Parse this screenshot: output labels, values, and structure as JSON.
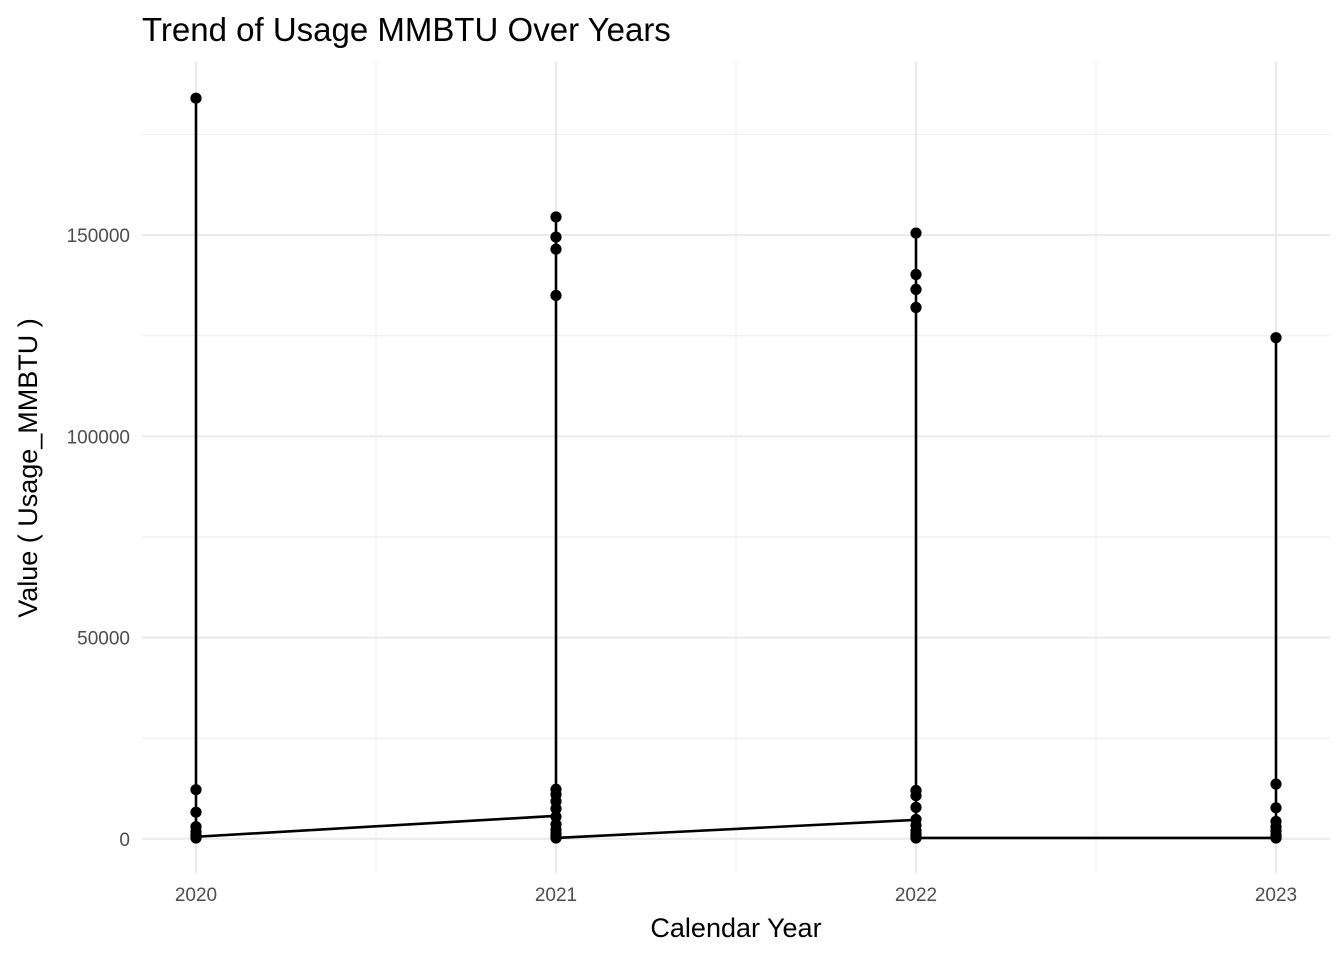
{
  "chart_data": {
    "type": "line",
    "title": "Trend of Usage MMBTU Over Years",
    "xlabel": "Calendar Year",
    "ylabel": "Value ( Usage_MMBTU )",
    "x_ticks": [
      "2020",
      "2021",
      "2022",
      "2023"
    ],
    "y_ticks": [
      "0",
      "50000",
      "100000",
      "150000"
    ],
    "ylim": [
      -8500,
      193000
    ],
    "xlim": [
      2019.85,
      2023.15
    ],
    "grid": true,
    "legend": "none",
    "colors": {
      "series": "#000000",
      "grid": "#ebebeb",
      "tick_text": "#4d4d4d"
    },
    "series": [
      {
        "x": [
          2020,
          2020,
          2020,
          2020,
          2020,
          2020,
          2020,
          2020,
          2021,
          2021,
          2021,
          2021,
          2021,
          2021,
          2021,
          2021,
          2021,
          2021,
          2021,
          2021,
          2021,
          2021,
          2022,
          2022,
          2022,
          2022,
          2022,
          2022,
          2022,
          2022,
          2022,
          2022,
          2022,
          2022,
          2022,
          2022,
          2023,
          2023,
          2023,
          2023,
          2023,
          2023,
          2023,
          2023,
          2023
        ],
        "y": [
          184000,
          12200,
          6600,
          3000,
          1800,
          1000,
          500,
          200,
          154500,
          149500,
          146500,
          135000,
          12300,
          11000,
          9300,
          7500,
          5500,
          3600,
          2200,
          1200,
          600,
          200,
          150500,
          140200,
          136500,
          132000,
          12000,
          10700,
          7800,
          4800,
          3300,
          2000,
          1200,
          800,
          400,
          200,
          124500,
          13600,
          7700,
          4300,
          3000,
          2000,
          1000,
          500,
          200
        ],
        "path_y": [
          184000,
          12200,
          6600,
          3000,
          1800,
          1000,
          500,
          5700,
          154500,
          149500,
          146500,
          135000,
          12300,
          11000,
          9300,
          7500,
          3600,
          2200,
          1200,
          600,
          200,
          4700,
          150500,
          140200,
          136500,
          132000,
          12000,
          10700,
          7800,
          3300,
          2000,
          1200,
          800,
          400,
          200,
          200,
          124500,
          13600,
          7700,
          4300,
          3000,
          2000,
          1000,
          500,
          200
        ],
        "path_x": [
          2020,
          2020,
          2020,
          2020,
          2020,
          2020,
          2020,
          2021,
          2021,
          2021,
          2021,
          2021,
          2021,
          2021,
          2021,
          2021,
          2021,
          2021,
          2021,
          2021,
          2021,
          2022,
          2022,
          2022,
          2022,
          2022,
          2022,
          2022,
          2022,
          2022,
          2022,
          2022,
          2022,
          2022,
          2022,
          2023,
          2023,
          2023,
          2023,
          2023,
          2023,
          2023,
          2023,
          2023,
          2023
        ]
      }
    ]
  }
}
